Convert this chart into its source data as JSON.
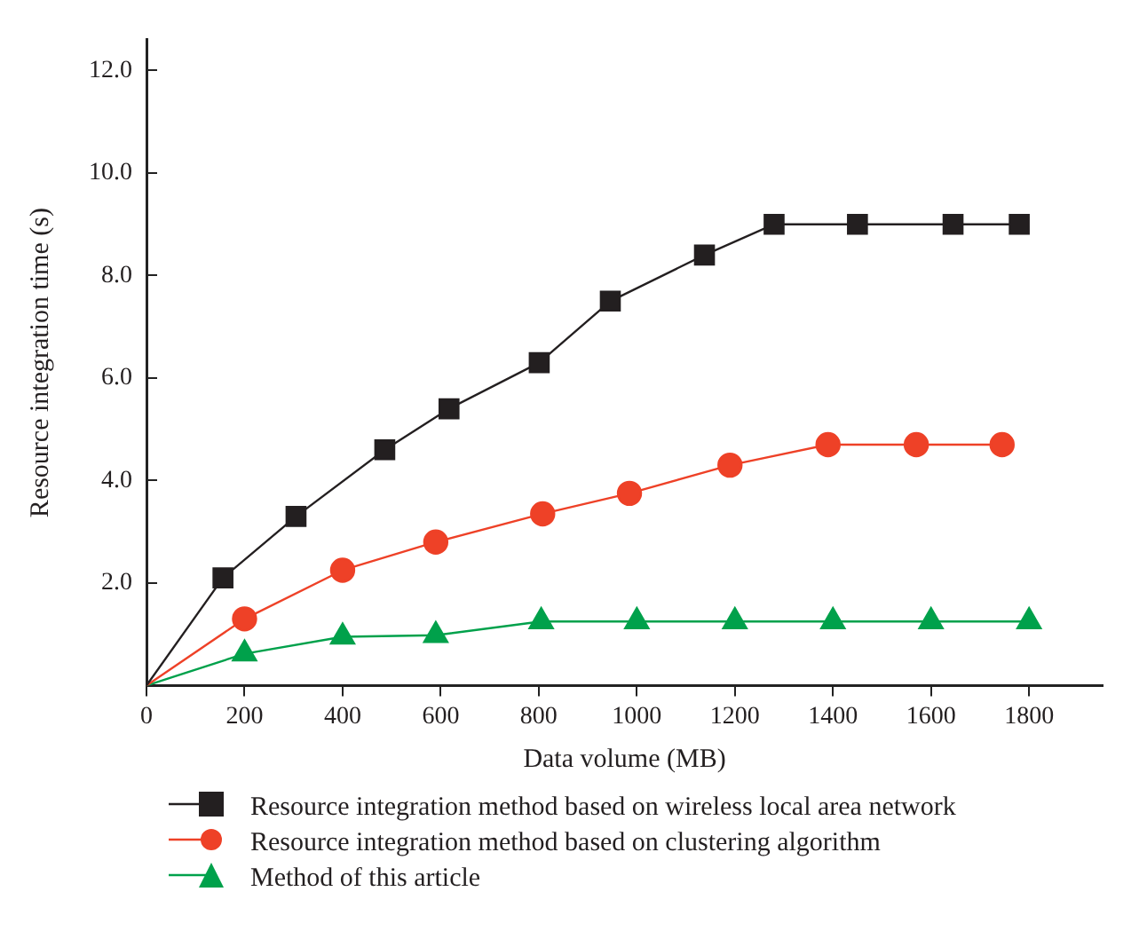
{
  "chart_data": {
    "type": "line",
    "xlabel": "Data volume (MB)",
    "ylabel": "Resource integration time (s)",
    "xlim": [
      0,
      1950
    ],
    "ylim": [
      0,
      12.6
    ],
    "xticks": [
      0,
      200,
      400,
      600,
      800,
      1000,
      1200,
      1400,
      1600,
      1800
    ],
    "yticks": [
      {
        "value": 2,
        "label": "2.0"
      },
      {
        "value": 4,
        "label": "4.0"
      },
      {
        "value": 6,
        "label": "6.0"
      },
      {
        "value": 8,
        "label": "8.0"
      },
      {
        "value": 10,
        "label": "10.0"
      },
      {
        "value": 12,
        "label": "12.0"
      }
    ],
    "grid": false,
    "legend": "bottom",
    "series": [
      {
        "name": "Resource integration method based on wireless local area network",
        "color": "#231f20",
        "marker": "square",
        "x": [
          0,
          156,
          305,
          486,
          617,
          801,
          946,
          1138,
          1280,
          1450,
          1645,
          1780
        ],
        "values": [
          0,
          2.1,
          3.3,
          4.6,
          5.4,
          6.3,
          7.5,
          8.4,
          9.0,
          9.0,
          9.0,
          9.0
        ]
      },
      {
        "name": "Resource integration method based on clustering algorithm",
        "color": "#ee4127",
        "marker": "circle",
        "x": [
          0,
          200,
          400,
          590,
          808,
          985,
          1190,
          1390,
          1570,
          1745
        ],
        "values": [
          0,
          1.3,
          2.25,
          2.8,
          3.35,
          3.75,
          4.3,
          4.7,
          4.7,
          4.7
        ]
      },
      {
        "name": "Method of this article",
        "color": "#00a14b",
        "marker": "triangle",
        "x": [
          0,
          200,
          400,
          590,
          805,
          1000,
          1200,
          1400,
          1600,
          1800
        ],
        "values": [
          0,
          0.62,
          0.95,
          0.98,
          1.25,
          1.25,
          1.25,
          1.25,
          1.25,
          1.25
        ]
      }
    ]
  }
}
